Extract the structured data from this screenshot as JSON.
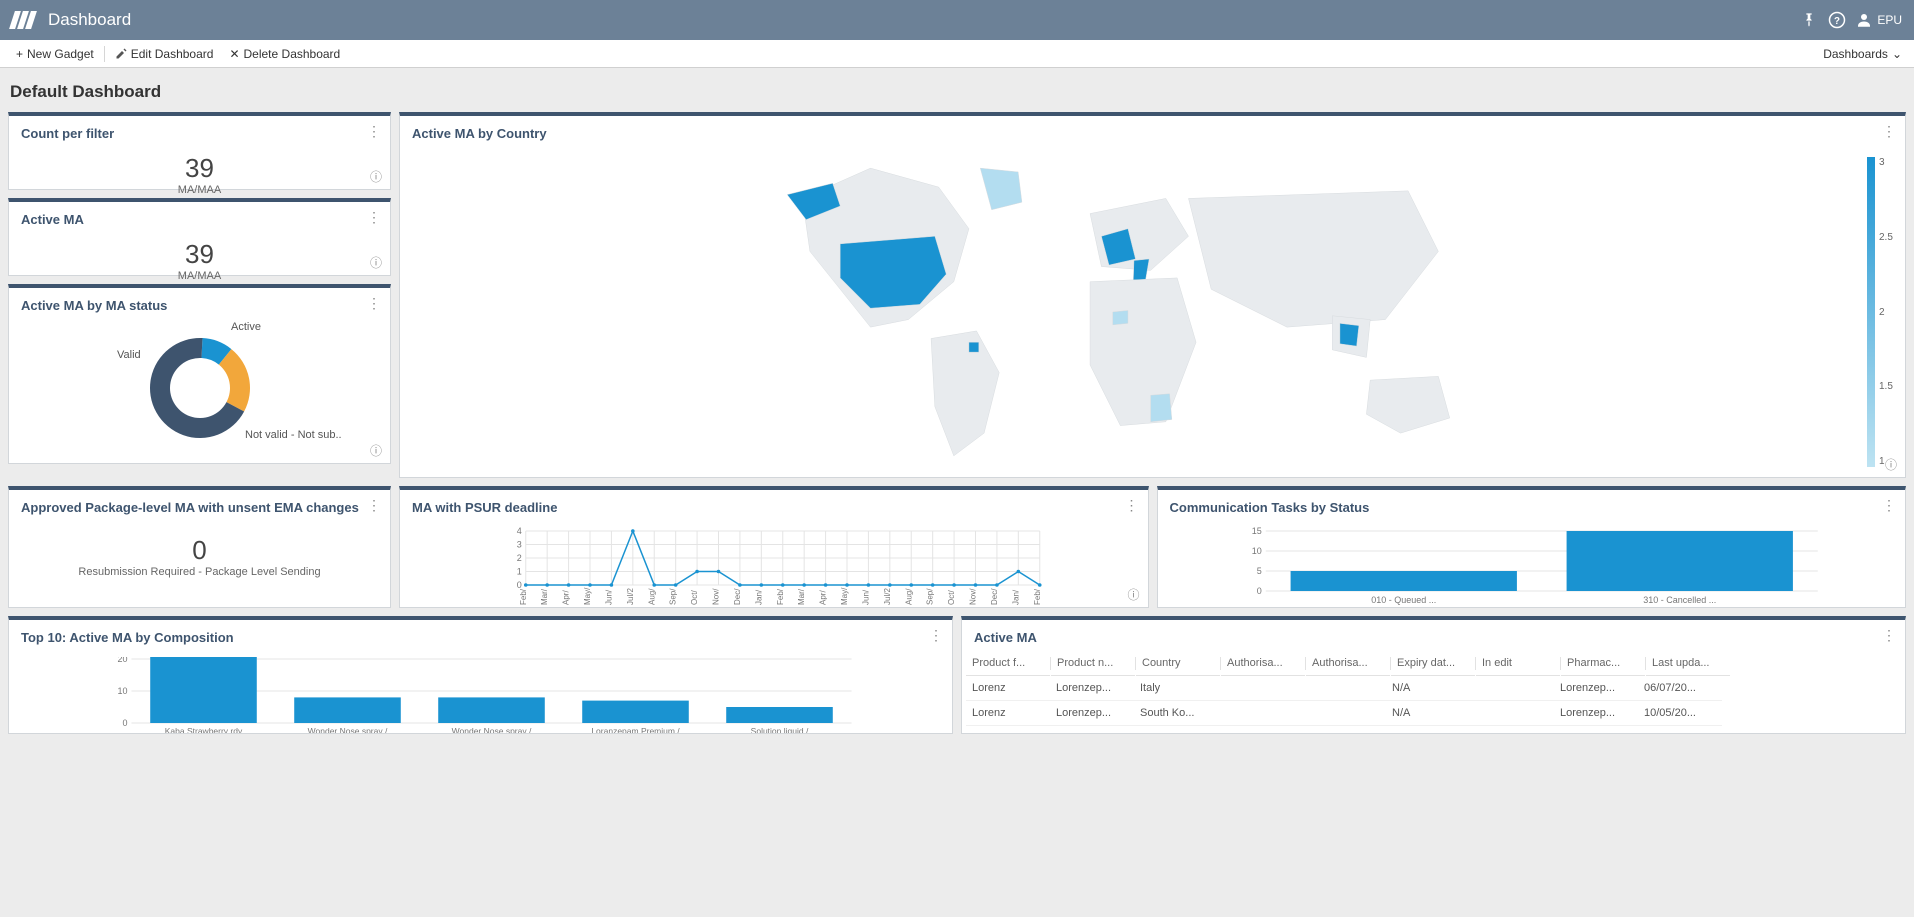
{
  "topbar": {
    "title": "Dashboard",
    "user": "EPU"
  },
  "toolbar": {
    "new_gadget": "New Gadget",
    "edit_dashboard": "Edit Dashboard",
    "delete_dashboard": "Delete Dashboard",
    "dashboards": "Dashboards"
  },
  "page_title": "Default Dashboard",
  "card_count_per_filter": {
    "title": "Count per filter",
    "value": "39",
    "sub": "MA/MAA"
  },
  "card_active_ma": {
    "title": "Active MA",
    "value": "39",
    "sub": "MA/MAA"
  },
  "card_ma_status": {
    "title": "Active MA by MA status",
    "segments": [
      {
        "label": "Active",
        "fraction": 0.1,
        "color": "#1a93d1"
      },
      {
        "label": "Valid",
        "fraction": 0.22,
        "color": "#f2a73b"
      },
      {
        "label": "Not valid - Not sub..",
        "fraction": 0.68,
        "color": "#3e546e"
      }
    ]
  },
  "card_map": {
    "title": "Active MA by Country",
    "highlight_color": "#1a93d1",
    "light_color": "#b3ddf0",
    "land_color": "#e8ebee",
    "border_color": "#d5d9dd",
    "legend": [
      "3",
      "2.5",
      "2",
      "1.5",
      "1"
    ]
  },
  "card_unsent": {
    "title": "Approved Package-level MA with unsent EMA changes",
    "value": "0",
    "sub": "Resubmission Required - Package Level Sending"
  },
  "card_psur": {
    "title": "MA with PSUR deadline",
    "line_color": "#1a93d1",
    "grid_color": "#e4e4e4",
    "text_color": "#777",
    "ylim": [
      0,
      4
    ],
    "ytick_step": 1,
    "x_labels": [
      "Feb/",
      "Mar/",
      "Apr/",
      "May/",
      "Jun/",
      "Jul/2",
      "Aug/",
      "Sep/",
      "Oct/",
      "Nov/",
      "Dec/",
      "Jan/",
      "Feb/",
      "Mar/",
      "Apr/",
      "May/",
      "Jun/",
      "Jul/2",
      "Aug/",
      "Sep/",
      "Oct/",
      "Nov/",
      "Dec/",
      "Jan/",
      "Feb/"
    ],
    "values": [
      0,
      0,
      0,
      0,
      0,
      4,
      0,
      0,
      1,
      1,
      0,
      0,
      0,
      0,
      0,
      0,
      0,
      0,
      0,
      0,
      0,
      0,
      0,
      1,
      0
    ]
  },
  "card_comm": {
    "title": "Communication Tasks by Status",
    "bar_color": "#1a93d1",
    "grid_color": "#e4e4e4",
    "text_color": "#777",
    "ylim": [
      0,
      15
    ],
    "ytick_step": 5,
    "bars": [
      {
        "label": "010 - Queued ...",
        "value": 5
      },
      {
        "label": "310 - Cancelled ...",
        "value": 15.5
      }
    ]
  },
  "card_top10": {
    "title": "Top 10: Active MA by Composition",
    "bar_color": "#1a93d1",
    "grid_color": "#e4e4e4",
    "text_color": "#777",
    "ylim": [
      0,
      20
    ],
    "ytick_step": 10,
    "bars": [
      {
        "label": "Kaba Strawberry rdy",
        "value": 23
      },
      {
        "label": "Wonder Nose spray /",
        "value": 8
      },
      {
        "label": "Wonder Nose spray /",
        "value": 8
      },
      {
        "label": "Loranzepam Premium /",
        "value": 7
      },
      {
        "label": "Solution liquid /",
        "value": 5
      }
    ]
  },
  "card_table": {
    "title": "Active MA",
    "columns": [
      "Product f...",
      "Product n...",
      "Country",
      "Authorisa...",
      "Authorisa...",
      "Expiry dat...",
      "In edit",
      "Pharmac...",
      "Last upda..."
    ],
    "rows": [
      [
        "Lorenz",
        "Lorenzep...",
        "Italy",
        "",
        "",
        "N/A",
        "",
        "Lorenzep...",
        "06/07/20..."
      ],
      [
        "Lorenz",
        "Lorenzep...",
        "South Ko...",
        "",
        "",
        "N/A",
        "",
        "Lorenzep...",
        "10/05/20..."
      ]
    ]
  }
}
